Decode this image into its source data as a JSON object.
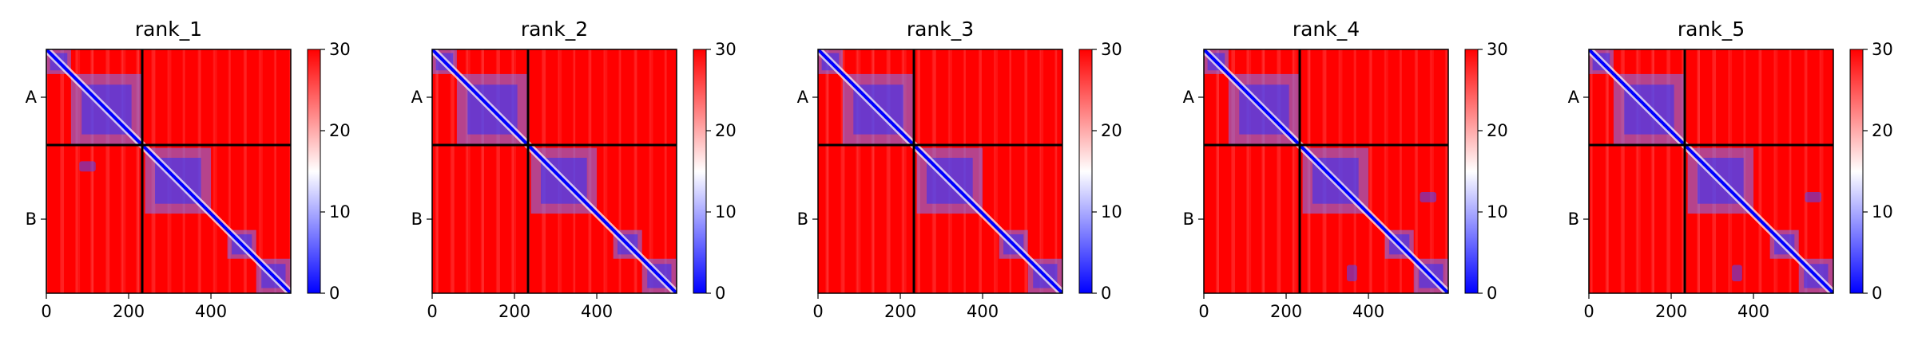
{
  "chart_data": [
    {
      "type": "heatmap",
      "title": "rank_1",
      "xticks": [
        0,
        200,
        400
      ],
      "xlim": [
        0,
        594
      ],
      "chain_boundary": 233,
      "chain_labels": [
        "A",
        "B"
      ],
      "colorbar": {
        "min": 0,
        "max": 30,
        "ticks": [
          0,
          10,
          20,
          30
        ],
        "colormap": "bwr"
      },
      "domains": [
        [
          0,
          60
        ],
        [
          60,
          233
        ],
        [
          240,
          400
        ],
        [
          440,
          510
        ],
        [
          510,
          594
        ]
      ],
      "offdiag_contacts": [
        [
          100,
          285,
          40,
          25
        ]
      ]
    },
    {
      "type": "heatmap",
      "title": "rank_2",
      "xticks": [
        0,
        200,
        400
      ],
      "xlim": [
        0,
        594
      ],
      "chain_boundary": 233,
      "chain_labels": [
        "A",
        "B"
      ],
      "colorbar": {
        "min": 0,
        "max": 30,
        "ticks": [
          0,
          10,
          20,
          30
        ],
        "colormap": "bwr"
      },
      "domains": [
        [
          0,
          60
        ],
        [
          60,
          233
        ],
        [
          240,
          400
        ],
        [
          440,
          510
        ],
        [
          510,
          594
        ]
      ],
      "offdiag_contacts": []
    },
    {
      "type": "heatmap",
      "title": "rank_3",
      "xticks": [
        0,
        200,
        400
      ],
      "xlim": [
        0,
        594
      ],
      "chain_boundary": 233,
      "chain_labels": [
        "A",
        "B"
      ],
      "colorbar": {
        "min": 0,
        "max": 30,
        "ticks": [
          0,
          10,
          20,
          30
        ],
        "colormap": "bwr"
      },
      "domains": [
        [
          0,
          60
        ],
        [
          60,
          233
        ],
        [
          240,
          400
        ],
        [
          440,
          510
        ],
        [
          510,
          594
        ]
      ],
      "offdiag_contacts": []
    },
    {
      "type": "heatmap",
      "title": "rank_4",
      "xticks": [
        0,
        200,
        400
      ],
      "xlim": [
        0,
        594
      ],
      "chain_boundary": 233,
      "chain_labels": [
        "A",
        "B"
      ],
      "colorbar": {
        "min": 0,
        "max": 30,
        "ticks": [
          0,
          10,
          20,
          30
        ],
        "colormap": "bwr"
      },
      "domains": [
        [
          0,
          60
        ],
        [
          60,
          233
        ],
        [
          240,
          400
        ],
        [
          440,
          510
        ],
        [
          510,
          594
        ]
      ],
      "offdiag_contacts": [
        [
          545,
          360,
          40,
          25
        ],
        [
          360,
          545,
          25,
          40
        ]
      ]
    },
    {
      "type": "heatmap",
      "title": "rank_5",
      "xticks": [
        0,
        200,
        400
      ],
      "xlim": [
        0,
        594
      ],
      "chain_boundary": 233,
      "chain_labels": [
        "A",
        "B"
      ],
      "colorbar": {
        "min": 0,
        "max": 30,
        "ticks": [
          0,
          10,
          20,
          30
        ],
        "colormap": "bwr"
      },
      "domains": [
        [
          0,
          60
        ],
        [
          60,
          233
        ],
        [
          240,
          400
        ],
        [
          440,
          510
        ],
        [
          510,
          594
        ]
      ],
      "offdiag_contacts": [
        [
          545,
          360,
          40,
          25
        ],
        [
          360,
          545,
          25,
          40
        ]
      ]
    }
  ],
  "colors": {
    "high": "#ff0000",
    "mid": "#ffffff",
    "low": "#0000ff",
    "divider": "#000000"
  }
}
